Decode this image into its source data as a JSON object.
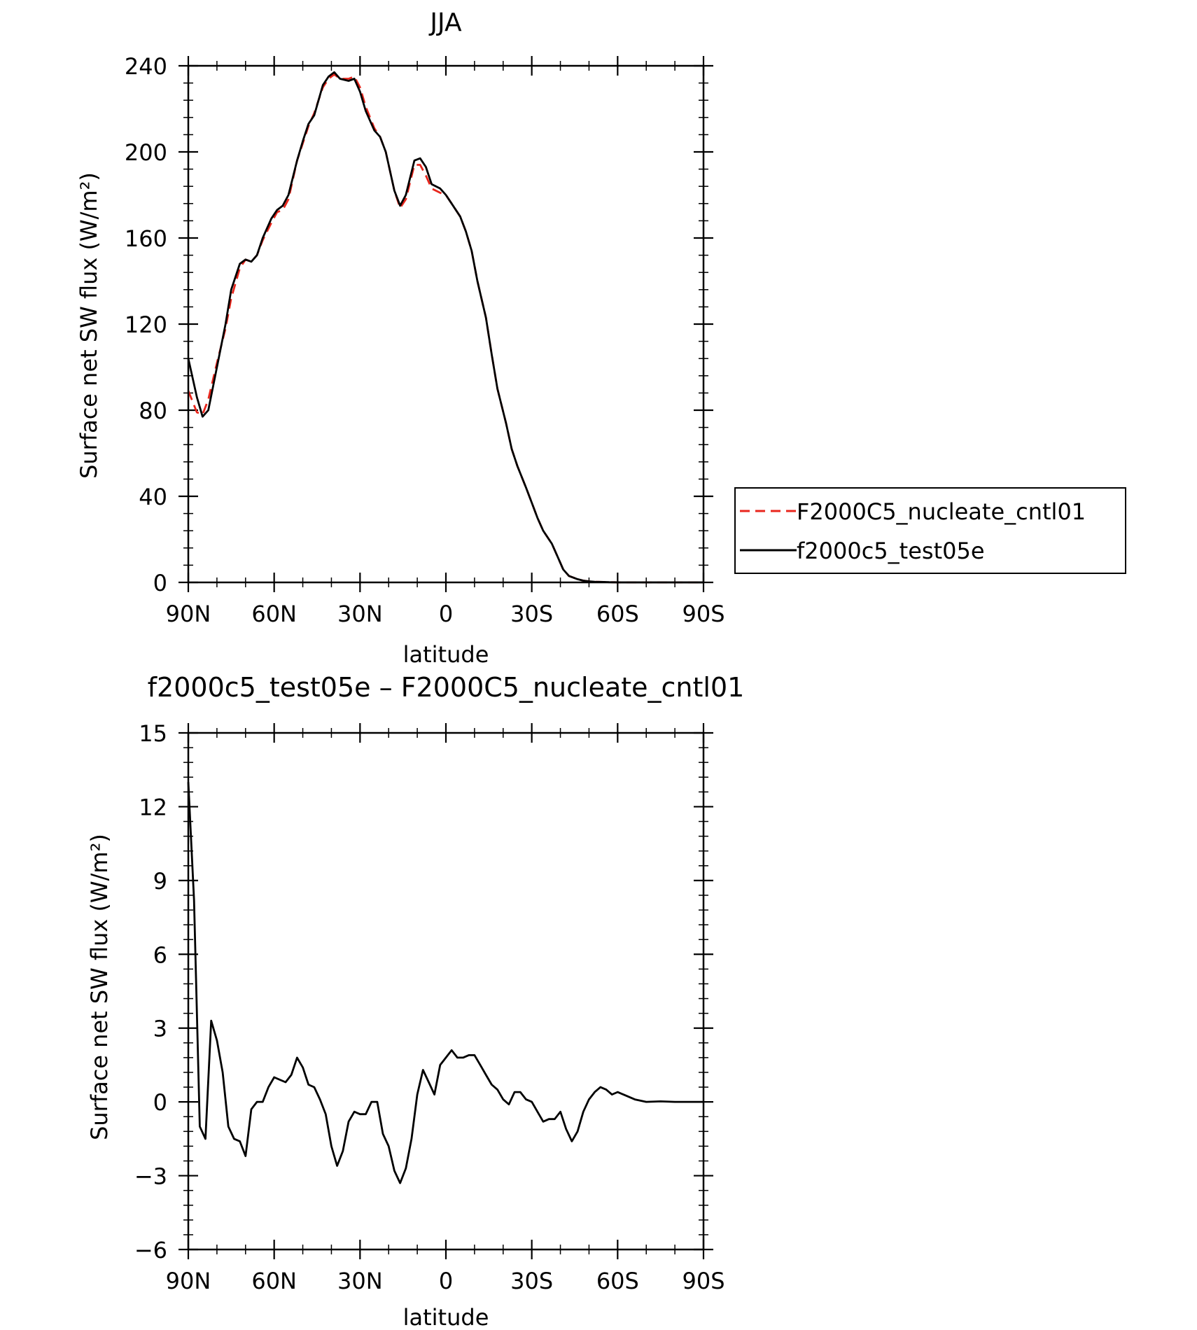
{
  "chart_data": [
    {
      "type": "line",
      "title": "JJA",
      "xlabel": "latitude",
      "ylabel": "Surface net SW flux (W/m²)",
      "xlim": [
        90,
        -90
      ],
      "ylim": [
        0,
        240
      ],
      "xticks": [
        {
          "v": 90,
          "label": "90N"
        },
        {
          "v": 60,
          "label": "60N"
        },
        {
          "v": 30,
          "label": "30N"
        },
        {
          "v": 0,
          "label": "0"
        },
        {
          "v": -30,
          "label": "30S"
        },
        {
          "v": -60,
          "label": "60S"
        },
        {
          "v": -90,
          "label": "90S"
        }
      ],
      "yticks": [
        0,
        40,
        80,
        120,
        160,
        200,
        240
      ],
      "legend_position": "right",
      "series": [
        {
          "name": "F2000C5_nucleate_cntl01",
          "color": "#e8261c",
          "dash": "dashed",
          "x": [
            90,
            87,
            85,
            83,
            80,
            77,
            75,
            72,
            70,
            68,
            66,
            64,
            61,
            59,
            57,
            55,
            52,
            50,
            48,
            46,
            43,
            41,
            39,
            37,
            34,
            32,
            30,
            28,
            25,
            23,
            21,
            18,
            16,
            14,
            11,
            9,
            7,
            5,
            2,
            0,
            -2,
            -5,
            -7,
            -9,
            -11,
            -14,
            -16,
            -18,
            -21,
            -23,
            -25,
            -28,
            -30,
            -32,
            -34,
            -37,
            -39,
            -41,
            -43,
            -46,
            -48,
            -50,
            -52,
            -55,
            -57,
            -59,
            -61,
            -64,
            -66,
            -68,
            -70,
            -72,
            -75,
            -77,
            -80,
            -83,
            -87,
            -90
          ],
          "values": [
            89,
            79,
            78,
            85,
            102,
            118,
            132,
            146,
            150,
            149,
            152,
            159,
            167,
            172,
            173,
            178,
            196,
            204,
            212,
            218,
            230,
            234,
            236,
            234,
            234,
            235,
            230,
            221,
            211,
            207,
            200,
            182,
            174,
            178,
            194,
            194,
            189,
            183,
            181,
            180,
            176,
            170,
            163,
            154,
            140,
            123,
            106,
            90,
            74,
            62,
            54,
            44,
            37,
            30,
            24,
            18,
            12,
            6,
            3,
            1.5,
            0.8,
            0.5,
            0.3,
            0.2,
            0.1,
            0.05,
            0,
            0,
            0,
            0,
            0,
            0,
            0,
            0,
            0,
            0,
            0,
            0
          ]
        },
        {
          "name": "f2000c5_test05e",
          "color": "#000000",
          "dash": "solid",
          "x": [
            90,
            87,
            85,
            83,
            80,
            77,
            75,
            72,
            70,
            68,
            66,
            64,
            61,
            59,
            57,
            55,
            52,
            50,
            48,
            46,
            43,
            41,
            39,
            37,
            34,
            32,
            30,
            28,
            25,
            23,
            21,
            18,
            16,
            14,
            11,
            9,
            7,
            5,
            2,
            0,
            -2,
            -5,
            -7,
            -9,
            -11,
            -14,
            -16,
            -18,
            -21,
            -23,
            -25,
            -28,
            -30,
            -32,
            -34,
            -37,
            -39,
            -41,
            -43,
            -46,
            -48,
            -50,
            -52,
            -55,
            -57,
            -59,
            -61,
            -64,
            -66,
            -68,
            -70,
            -72,
            -75,
            -77,
            -80,
            -83,
            -87,
            -90
          ],
          "values": [
            104,
            86,
            77,
            80,
            100,
            120,
            136,
            148,
            150,
            149,
            152,
            160,
            169,
            173,
            175,
            180,
            196,
            205,
            213,
            217,
            231,
            235,
            237,
            234,
            233,
            234,
            228,
            219,
            210,
            207,
            200,
            182,
            175,
            180,
            196,
            197,
            193,
            185,
            183,
            180,
            176,
            170,
            163,
            154,
            140,
            123,
            106,
            90,
            74,
            62,
            54,
            44,
            37,
            30,
            24,
            18,
            12,
            6,
            3,
            1.5,
            0.8,
            0.5,
            0.3,
            0.2,
            0.1,
            0.05,
            0,
            0,
            0,
            0,
            0,
            0,
            0,
            0,
            0,
            0,
            0,
            0
          ]
        }
      ]
    },
    {
      "type": "line",
      "title": "f2000c5_test05e – F2000C5_nucleate_cntl01",
      "xlabel": "latitude",
      "ylabel": "Surface net SW flux (W/m²)",
      "xlim": [
        90,
        -90
      ],
      "ylim": [
        -6,
        15
      ],
      "xticks": [
        {
          "v": 90,
          "label": "90N"
        },
        {
          "v": 60,
          "label": "60N"
        },
        {
          "v": 30,
          "label": "30N"
        },
        {
          "v": 0,
          "label": "0"
        },
        {
          "v": -30,
          "label": "30S"
        },
        {
          "v": -60,
          "label": "60S"
        },
        {
          "v": -90,
          "label": "90S"
        }
      ],
      "yticks": [
        {
          "v": -6,
          "label": "−6"
        },
        {
          "v": -3,
          "label": "−3"
        },
        {
          "v": 0,
          "label": "0"
        },
        {
          "v": 3,
          "label": "3"
        },
        {
          "v": 6,
          "label": "6"
        },
        {
          "v": 9,
          "label": "9"
        },
        {
          "v": 12,
          "label": "12"
        },
        {
          "v": 15,
          "label": "15"
        }
      ],
      "series": [
        {
          "name": "",
          "color": "#000000",
          "dash": "solid",
          "x": [
            90,
            88,
            86,
            84,
            82,
            80,
            78,
            76,
            74,
            72,
            70,
            68,
            66,
            64,
            62,
            60,
            58,
            56,
            54,
            52,
            50,
            48,
            46,
            44,
            42,
            40,
            38,
            36,
            34,
            32,
            30,
            28,
            26,
            24,
            22,
            20,
            18,
            16,
            14,
            12,
            10,
            8,
            6,
            4,
            2,
            0,
            -2,
            -4,
            -6,
            -8,
            -10,
            -12,
            -14,
            -16,
            -18,
            -20,
            -22,
            -24,
            -26,
            -28,
            -30,
            -32,
            -34,
            -36,
            -38,
            -40,
            -42,
            -44,
            -46,
            -48,
            -50,
            -52,
            -54,
            -56,
            -58,
            -60,
            -62,
            -64,
            -66,
            -70,
            -75,
            -80,
            -90
          ],
          "values": [
            13,
            8.2,
            -1.0,
            -1.5,
            3.3,
            2.5,
            1.2,
            -1.0,
            -1.5,
            -1.6,
            -2.2,
            -0.3,
            0.0,
            0.0,
            0.6,
            1.0,
            0.9,
            0.8,
            1.1,
            1.8,
            1.4,
            0.7,
            0.6,
            0.1,
            -0.5,
            -1.8,
            -2.6,
            -2.0,
            -0.8,
            -0.4,
            -0.5,
            -0.5,
            0.0,
            0.0,
            -1.3,
            -1.8,
            -2.8,
            -3.3,
            -2.7,
            -1.5,
            0.3,
            1.3,
            0.8,
            0.3,
            1.5,
            1.8,
            2.1,
            1.8,
            1.8,
            1.9,
            1.9,
            1.5,
            1.1,
            0.7,
            0.5,
            0.1,
            -0.1,
            0.4,
            0.4,
            0.1,
            0.0,
            -0.4,
            -0.8,
            -0.7,
            -0.7,
            -0.4,
            -1.1,
            -1.6,
            -1.2,
            -0.4,
            0.1,
            0.4,
            0.6,
            0.5,
            0.3,
            0.4,
            0.3,
            0.2,
            0.1,
            0.0,
            0.02,
            0.0,
            0.0
          ]
        }
      ]
    }
  ]
}
